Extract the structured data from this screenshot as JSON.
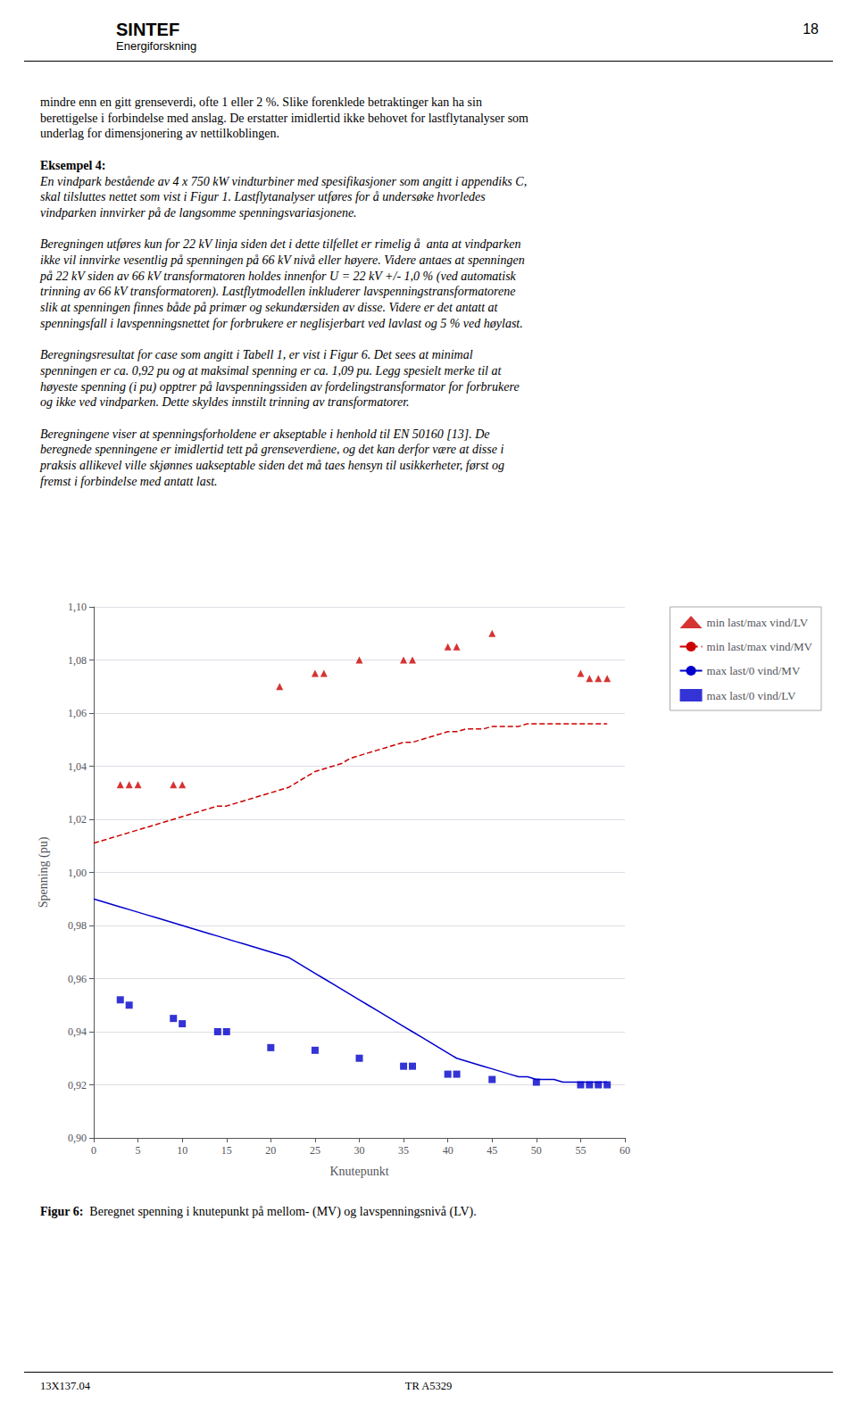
{
  "chart_data": {
    "type": "line",
    "xlabel": "Knutepunkt",
    "ylabel": "Spenning (pu)",
    "xlim": [
      0,
      60
    ],
    "xticks": [
      0,
      5,
      10,
      15,
      20,
      25,
      30,
      35,
      40,
      45,
      50,
      55,
      60
    ],
    "ylim": [
      0.9,
      1.1
    ],
    "yticks": [
      {
        "value": 0.9,
        "label": "0,90"
      },
      {
        "value": 0.92,
        "label": "0,92"
      },
      {
        "value": 0.94,
        "label": "0,94"
      },
      {
        "value": 0.96,
        "label": "0,96"
      },
      {
        "value": 0.98,
        "label": "0,98"
      },
      {
        "value": 1.0,
        "label": "1,00"
      },
      {
        "value": 1.02,
        "label": "1,02"
      },
      {
        "value": 1.04,
        "label": "1,04"
      },
      {
        "value": 1.06,
        "label": "1,06"
      },
      {
        "value": 1.08,
        "label": "1,08"
      },
      {
        "value": 1.1,
        "label": "1,10"
      }
    ],
    "grid": "y",
    "legend": "right",
    "legend_order": [
      "min last/max vind/LV",
      "min last/max vind/MV",
      "max last/0 vind/MV",
      "max last/0 vind/LV"
    ],
    "series": [
      {
        "name": "max last/0 vind/MV",
        "type": "line",
        "line_style": "solid",
        "color": "#0000CC",
        "x": [
          0,
          1,
          2,
          3,
          4,
          5,
          6,
          7,
          8,
          9,
          10,
          11,
          12,
          13,
          14,
          15,
          16,
          17,
          18,
          19,
          20,
          21,
          22,
          23,
          24,
          25,
          26,
          27,
          28,
          29,
          30,
          31,
          32,
          33,
          34,
          35,
          36,
          37,
          38,
          39,
          40,
          41,
          42,
          43,
          44,
          45,
          46,
          47,
          48,
          49,
          50,
          51,
          52,
          53,
          54,
          55,
          56,
          57,
          58
        ],
        "values": [
          0.99,
          0.989,
          0.988,
          0.987,
          0.986,
          0.985,
          0.984,
          0.983,
          0.982,
          0.981,
          0.98,
          0.979,
          0.978,
          0.977,
          0.976,
          0.975,
          0.974,
          0.973,
          0.972,
          0.971,
          0.97,
          0.969,
          0.968,
          0.966,
          0.964,
          0.962,
          0.96,
          0.958,
          0.956,
          0.954,
          0.952,
          0.95,
          0.948,
          0.946,
          0.944,
          0.942,
          0.94,
          0.938,
          0.936,
          0.934,
          0.932,
          0.93,
          0.929,
          0.928,
          0.927,
          0.926,
          0.925,
          0.924,
          0.923,
          0.923,
          0.922,
          0.922,
          0.922,
          0.921,
          0.921,
          0.921,
          0.921,
          0.921,
          0.921
        ]
      },
      {
        "name": "max last/0 vind/LV",
        "type": "scatter",
        "marker": "square",
        "color": "#0000CC",
        "x": [
          3,
          4,
          9,
          10,
          14,
          15,
          20,
          25,
          30,
          35,
          36,
          40,
          41,
          45,
          50,
          55,
          56,
          57,
          58
        ],
        "values": [
          0.952,
          0.95,
          0.945,
          0.943,
          0.94,
          0.94,
          0.934,
          0.933,
          0.93,
          0.927,
          0.927,
          0.924,
          0.924,
          0.922,
          0.921,
          0.92,
          0.92,
          0.92,
          0.92
        ]
      },
      {
        "name": "min last/max vind/MV",
        "type": "line",
        "line_style": "dashed",
        "color": "#CC0000",
        "x": [
          0,
          1,
          2,
          3,
          4,
          5,
          6,
          7,
          8,
          9,
          10,
          11,
          12,
          13,
          14,
          15,
          16,
          17,
          18,
          19,
          20,
          21,
          22,
          23,
          24,
          25,
          26,
          27,
          28,
          29,
          30,
          31,
          32,
          33,
          34,
          35,
          36,
          37,
          38,
          39,
          40,
          41,
          42,
          43,
          44,
          45,
          46,
          47,
          48,
          49,
          50,
          51,
          52,
          53,
          54,
          55,
          56,
          57,
          58
        ],
        "values": [
          1.011,
          1.012,
          1.013,
          1.014,
          1.015,
          1.016,
          1.017,
          1.018,
          1.019,
          1.02,
          1.021,
          1.022,
          1.023,
          1.024,
          1.025,
          1.025,
          1.026,
          1.027,
          1.028,
          1.029,
          1.03,
          1.031,
          1.032,
          1.034,
          1.036,
          1.038,
          1.039,
          1.04,
          1.041,
          1.043,
          1.044,
          1.045,
          1.046,
          1.047,
          1.048,
          1.049,
          1.049,
          1.05,
          1.051,
          1.052,
          1.053,
          1.053,
          1.054,
          1.054,
          1.054,
          1.055,
          1.055,
          1.055,
          1.055,
          1.056,
          1.056,
          1.056,
          1.056,
          1.056,
          1.056,
          1.056,
          1.056,
          1.056,
          1.056
        ]
      },
      {
        "name": "min last/max vind/LV",
        "type": "scatter",
        "marker": "triangle",
        "color": "#CC0000",
        "x": [
          3,
          4,
          5,
          9,
          10,
          21,
          25,
          26,
          30,
          35,
          36,
          40,
          41,
          45,
          55,
          56,
          57,
          58
        ],
        "values": [
          1.033,
          1.033,
          1.033,
          1.033,
          1.033,
          1.07,
          1.075,
          1.075,
          1.08,
          1.08,
          1.08,
          1.085,
          1.085,
          1.09,
          1.075,
          1.073,
          1.073,
          1.073
        ]
      }
    ]
  },
  "page_text": {
    "header": [
      "SINTEF",
      "Energiforskning"
    ],
    "page_number": "18",
    "body": [
      [
        {
          "text": "mindre enn en gitt grenseverdi, ofte 1 eller 2 %. Slike forenklede betraktinger kan ha sin",
          "style": "normal"
        },
        {
          "text": "berettigelse i forbindelse med anslag. De erstatter imidlertid ikke behovet for lastflytanalyser som",
          "style": "normal"
        },
        {
          "text": "underlag for dimensjonering av nettilkoblingen.",
          "style": "normal"
        }
      ],
      [
        {
          "text": "Eksempel 4:",
          "style": "bold"
        },
        {
          "text": "En vindpark bestående av 4 x 750 kW vindturbiner med spesifikasjoner som angitt i appendiks C,",
          "style": "italic"
        },
        {
          "text": "skal tilsluttes nettet som vist i Figur 1. Lastflytanalyser utføres for å undersøke hvorledes",
          "style": "italic"
        },
        {
          "text": "vindparken innvirker på de langsomme spenningsvariasjonene.",
          "style": "italic"
        }
      ],
      [
        {
          "text": "Beregningen utføres kun for 22 kV linja siden det i dette tilfellet er rimelig å  anta at vindparken",
          "style": "italic"
        },
        {
          "text": "ikke vil innvirke vesentlig på spenningen på 66 kV nivå eller høyere. Videre antaes at spenningen",
          "style": "italic"
        },
        {
          "text": "på 22 kV siden av 66 kV transformatoren holdes innenfor U = 22 kV +/- 1,0 % (ved automatisk",
          "style": "italic"
        },
        {
          "text": "trinning av 66 kV transformatoren). Lastflytmodellen inkluderer lavspenningstransformatorene",
          "style": "italic"
        },
        {
          "text": "slik at spenningen finnes både på primær og sekundærsiden av disse. Videre er det antatt at",
          "style": "italic"
        },
        {
          "text": "spenningsfall i lavspenningsnettet for forbrukere er neglisjerbart ved lavlast og 5 % ved høylast.",
          "style": "italic"
        }
      ],
      [
        {
          "text": "Beregningsresultat for case som angitt i Tabell 1, er vist i Figur 6. Det sees at minimal",
          "style": "italic"
        },
        {
          "text": "spenningen er ca. 0,92 pu og at maksimal spenning er ca. 1,09 pu. Legg spesielt merke til at",
          "style": "italic"
        },
        {
          "text": "høyeste spenning (i pu) opptrer på lavspenningssiden av fordelingstransformator for forbrukere",
          "style": "italic"
        },
        {
          "text": "og ikke ved vindparken. Dette skyldes innstilt trinning av transformatorer.",
          "style": "italic"
        }
      ],
      [
        {
          "text": "Beregningene viser at spenningsforholdene er akseptable i henhold til EN 50160 [13]. De",
          "style": "italic"
        },
        {
          "text": "beregnede spenningene er imidlertid tett på grenseverdiene, og det kan derfor være at disse i",
          "style": "italic"
        },
        {
          "text": "praksis allikevel ville skjønnes uakseptable siden det må taes hensyn til usikkerheter, først og",
          "style": "italic"
        },
        {
          "text": "fremst i forbindelse med antatt last.",
          "style": "italic"
        }
      ]
    ],
    "caption_bold": "Figur 6:",
    "caption": "  Beregnet spenning i knutepunkt på mellom- (MV) og lavspenningsnivå (LV).",
    "footer": [
      "13X137.04",
      "TR A5329"
    ]
  }
}
